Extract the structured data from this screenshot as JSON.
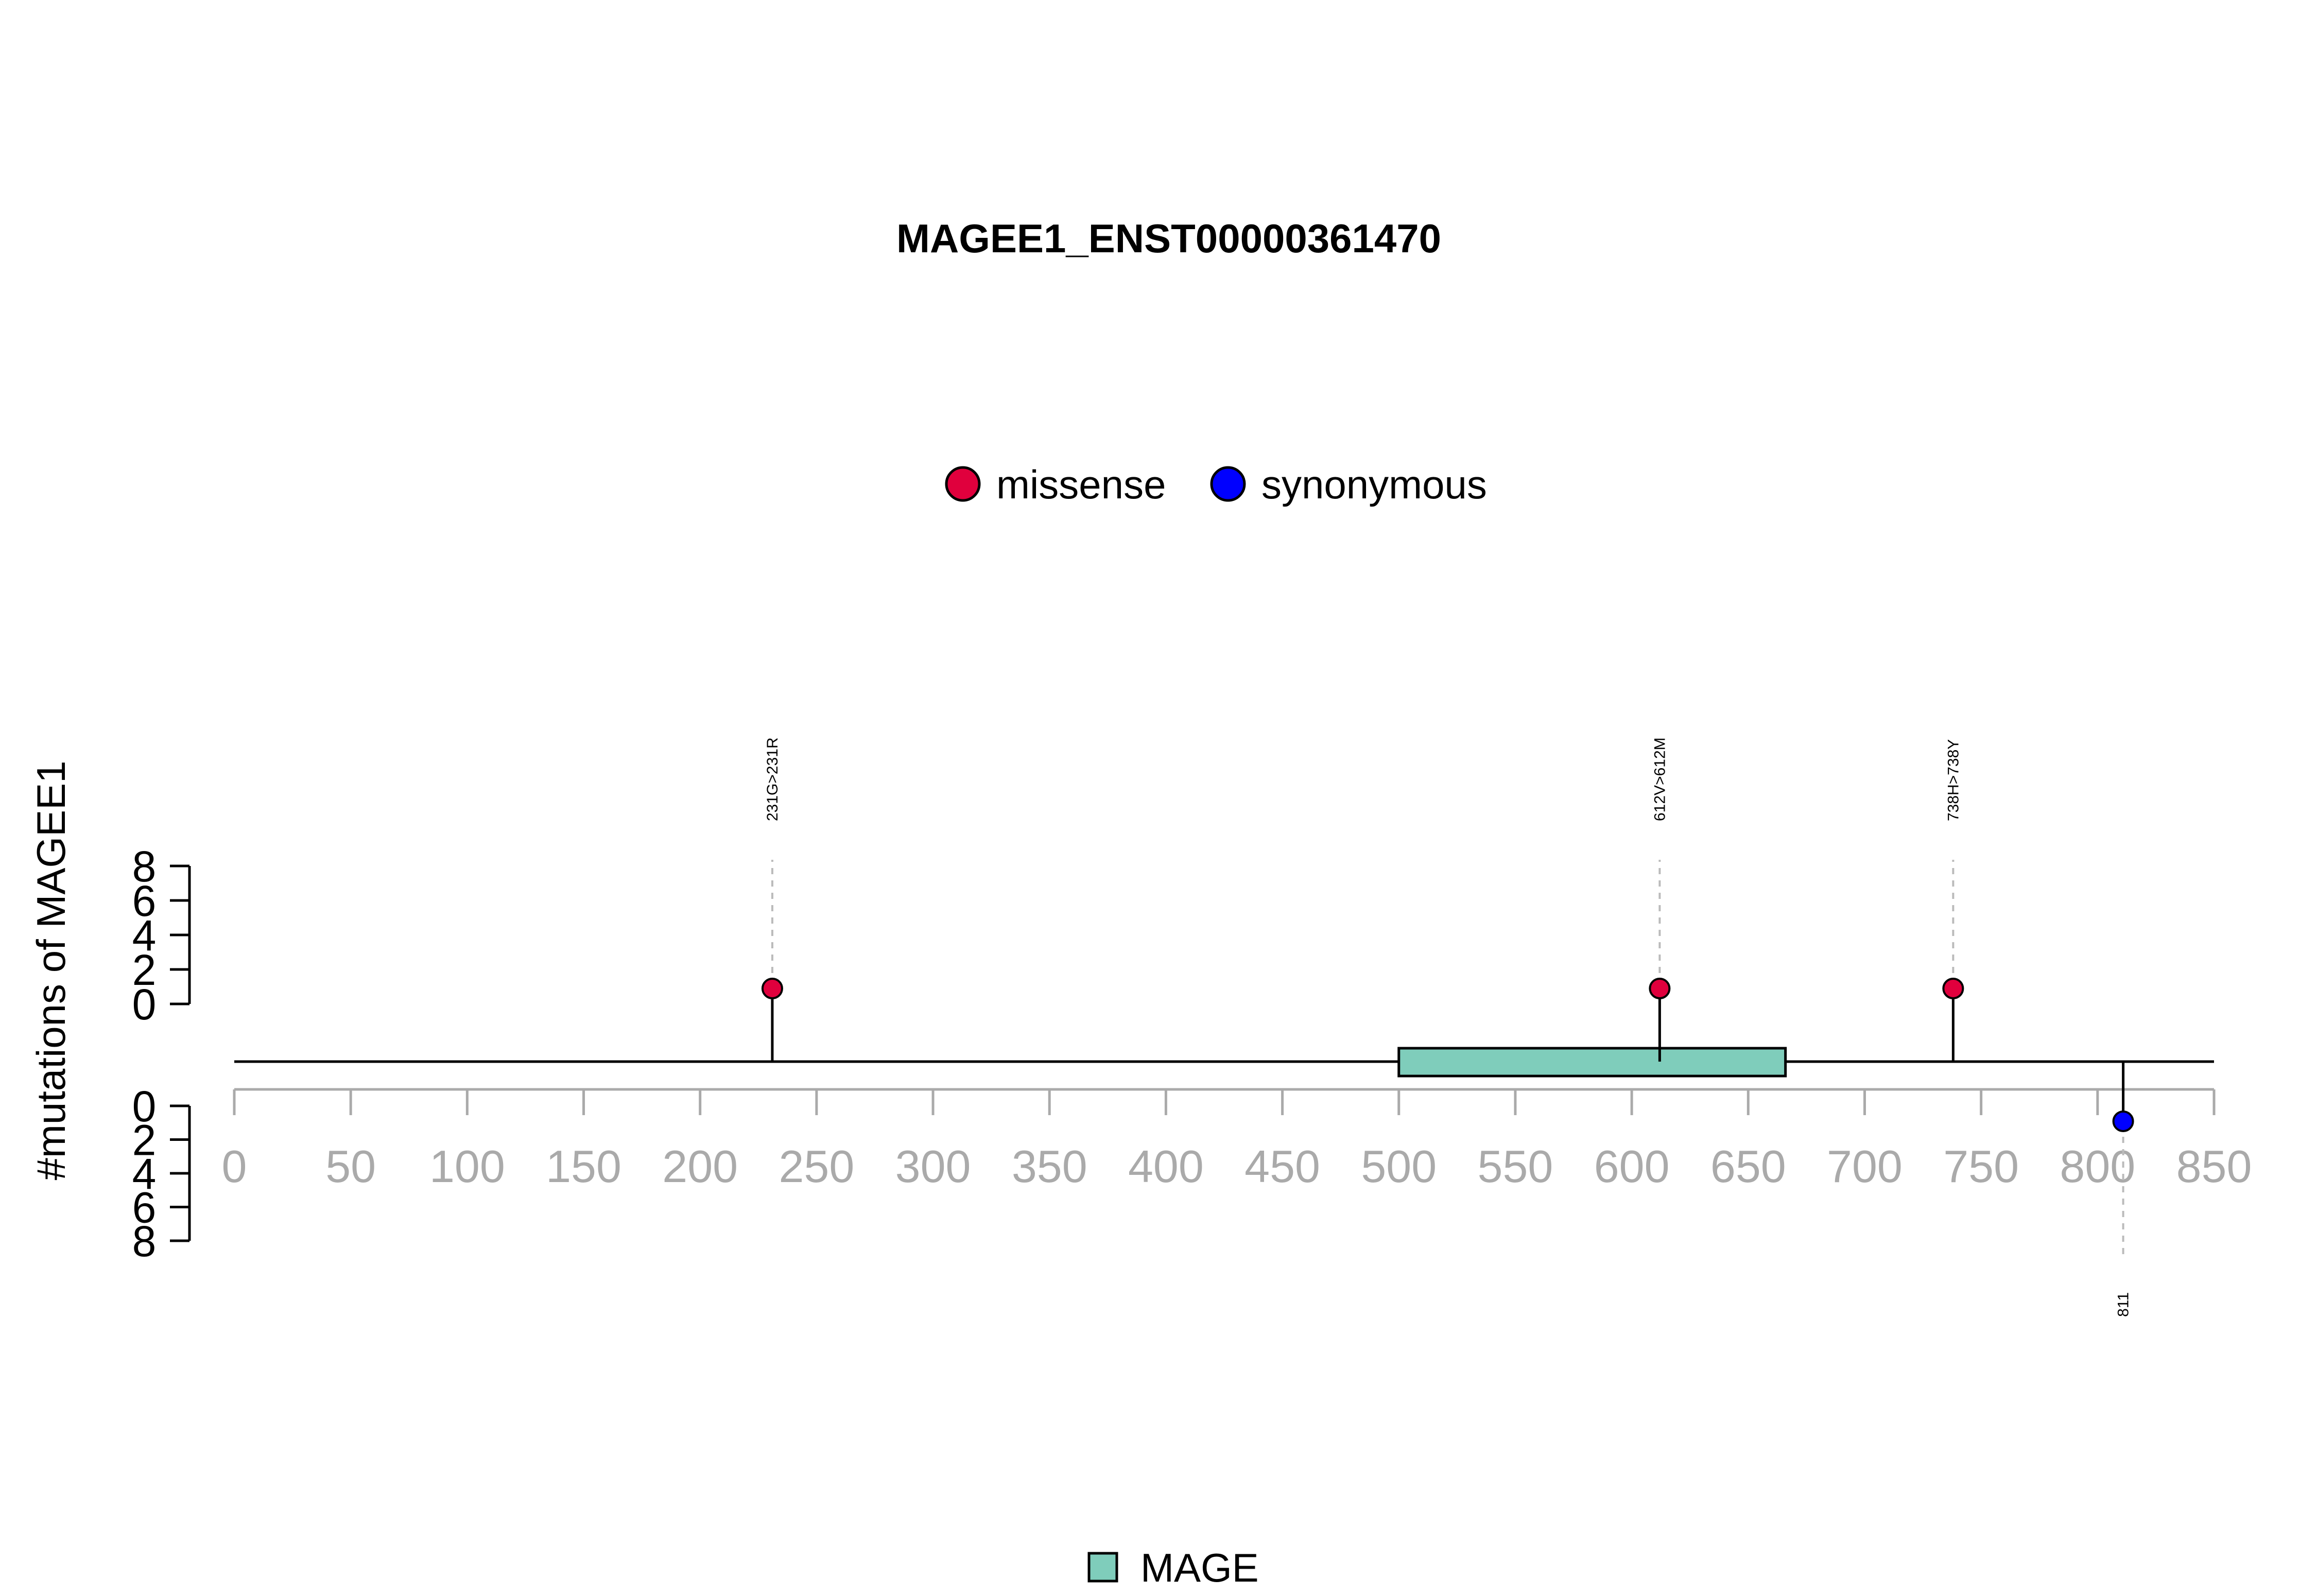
{
  "chart_data": {
    "type": "lollipop",
    "title": "MAGEE1_ENST00000361470",
    "ylabel": "#mutations of MAGEE1",
    "xlim": [
      0,
      850
    ],
    "x_ticks": [
      0,
      50,
      100,
      150,
      200,
      250,
      300,
      350,
      400,
      450,
      500,
      550,
      600,
      650,
      700,
      750,
      800,
      850
    ],
    "count_ticks_top": [
      0,
      2,
      4,
      6,
      8
    ],
    "count_ticks_bottom": [
      0,
      2,
      4,
      6,
      8
    ],
    "mutation_legend": [
      {
        "label": "missense",
        "color": "#e0003d"
      },
      {
        "label": "synonymous",
        "color": "#0000ff"
      }
    ],
    "mutations": [
      {
        "position": 231,
        "count": 1,
        "type": "missense",
        "label": "231G>231R",
        "side": "top"
      },
      {
        "position": 612,
        "count": 1,
        "type": "missense",
        "label": "612V>612M",
        "side": "top"
      },
      {
        "position": 738,
        "count": 1,
        "type": "missense",
        "label": "738H>738Y",
        "side": "top"
      },
      {
        "position": 811,
        "count": 1,
        "type": "synonymous",
        "label": "811",
        "side": "bottom"
      }
    ],
    "domains": [
      {
        "name": "MAGE",
        "start": 500,
        "end": 666,
        "color": "#7fcdbb"
      }
    ],
    "domain_legend": [
      {
        "label": "MAGE",
        "color": "#7fcdbb"
      }
    ]
  }
}
